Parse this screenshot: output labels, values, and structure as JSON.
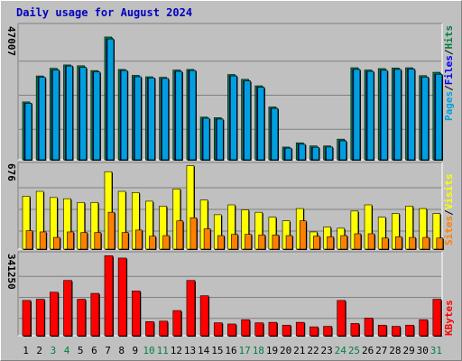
{
  "title": "Daily usage for August 2024",
  "colors": {
    "pages": "#00a0e0",
    "files": "#0000ff",
    "hits": "#008040",
    "visits": "#ffff00",
    "sites": "#ff8000",
    "kbytes": "#ff0000",
    "weekday_label": "#000000",
    "weekend_label": "#008040",
    "panel_bg": "#c0c0c0",
    "title": "#0000c0",
    "separator": "#000000"
  },
  "chart_data": [
    {
      "type": "bar",
      "panel": "hits",
      "y_axis_max_label": "47007",
      "legend": {
        "pages": "Pages",
        "files": "Files",
        "hits": "Hits",
        "separator": "/"
      },
      "ylim": [
        0,
        47007
      ],
      "categories": [
        "1",
        "2",
        "3",
        "4",
        "5",
        "6",
        "7",
        "8",
        "9",
        "10",
        "11",
        "12",
        "13",
        "14",
        "15",
        "16",
        "17",
        "18",
        "19",
        "20",
        "21",
        "22",
        "23",
        "24",
        "25",
        "26",
        "27",
        "28",
        "29",
        "30",
        "31"
      ],
      "series": [
        {
          "name": "Hits",
          "values": [
            20500,
            29700,
            32400,
            33600,
            33300,
            31600,
            43500,
            32000,
            29900,
            29400,
            29200,
            31800,
            32000,
            15100,
            14900,
            30200,
            28500,
            26200,
            18700,
            4500,
            6000,
            4900,
            4900,
            7300,
            32600,
            31800,
            32300,
            32500,
            32600,
            29800,
            31000
          ]
        },
        {
          "name": "Files",
          "values": [
            20000,
            29200,
            31800,
            33200,
            32700,
            31100,
            42800,
            31600,
            29400,
            29000,
            28800,
            31300,
            31600,
            14700,
            14400,
            29700,
            27900,
            25700,
            18200,
            4100,
            5500,
            4400,
            4500,
            6700,
            32000,
            31300,
            31700,
            32000,
            32100,
            29300,
            30300
          ]
        },
        {
          "name": "Pages",
          "values": [
            20000,
            29200,
            31800,
            33200,
            32700,
            31100,
            42800,
            31600,
            29400,
            29000,
            28800,
            31300,
            31600,
            14700,
            14400,
            29700,
            27900,
            25700,
            18200,
            4100,
            5500,
            4400,
            4500,
            6700,
            32000,
            31300,
            31700,
            32000,
            32100,
            29300,
            30300
          ]
        }
      ]
    },
    {
      "type": "bar",
      "panel": "visits",
      "y_axis_max_label": "676",
      "legend": {
        "sites": "Sites",
        "visits": "Visits",
        "separator": "/"
      },
      "ylim": [
        0,
        676
      ],
      "categories": [
        "1",
        "2",
        "3",
        "4",
        "5",
        "6",
        "7",
        "8",
        "9",
        "10",
        "11",
        "12",
        "13",
        "14",
        "15",
        "16",
        "17",
        "18",
        "19",
        "20",
        "21",
        "22",
        "23",
        "24",
        "25",
        "26",
        "27",
        "28",
        "29",
        "30",
        "31"
      ],
      "series": [
        {
          "name": "Visits",
          "values": [
            430,
            470,
            420,
            410,
            380,
            380,
            630,
            470,
            460,
            390,
            350,
            490,
            680,
            400,
            280,
            360,
            320,
            300,
            260,
            230,
            330,
            140,
            180,
            170,
            310,
            360,
            260,
            290,
            350,
            330,
            290
          ]
        },
        {
          "name": "Sites",
          "values": [
            150,
            140,
            95,
            140,
            135,
            135,
            300,
            135,
            155,
            105,
            110,
            230,
            255,
            165,
            110,
            120,
            120,
            115,
            115,
            110,
            230,
            105,
            100,
            110,
            125,
            125,
            90,
            100,
            95,
            95,
            90
          ]
        }
      ]
    },
    {
      "type": "bar",
      "panel": "kbytes",
      "y_axis_max_label": "341250",
      "legend": {
        "kbytes": "KBytes"
      },
      "ylim": [
        0,
        341250
      ],
      "categories": [
        "1",
        "2",
        "3",
        "4",
        "5",
        "6",
        "7",
        "8",
        "9",
        "10",
        "11",
        "12",
        "13",
        "14",
        "15",
        "16",
        "17",
        "18",
        "19",
        "20",
        "21",
        "22",
        "23",
        "24",
        "25",
        "26",
        "27",
        "28",
        "29",
        "30",
        "31"
      ],
      "series": [
        {
          "name": "KBytes",
          "values": [
            150000,
            155000,
            185000,
            235000,
            155000,
            180000,
            340000,
            330000,
            190000,
            60000,
            62000,
            107000,
            235000,
            170000,
            55000,
            50000,
            68000,
            55000,
            57000,
            45000,
            57000,
            38000,
            40000,
            150000,
            52000,
            75000,
            45000,
            40000,
            45000,
            68000,
            155000
          ]
        }
      ]
    }
  ],
  "weekend_days": [
    3,
    4,
    10,
    11,
    17,
    18,
    24,
    25,
    31
  ]
}
